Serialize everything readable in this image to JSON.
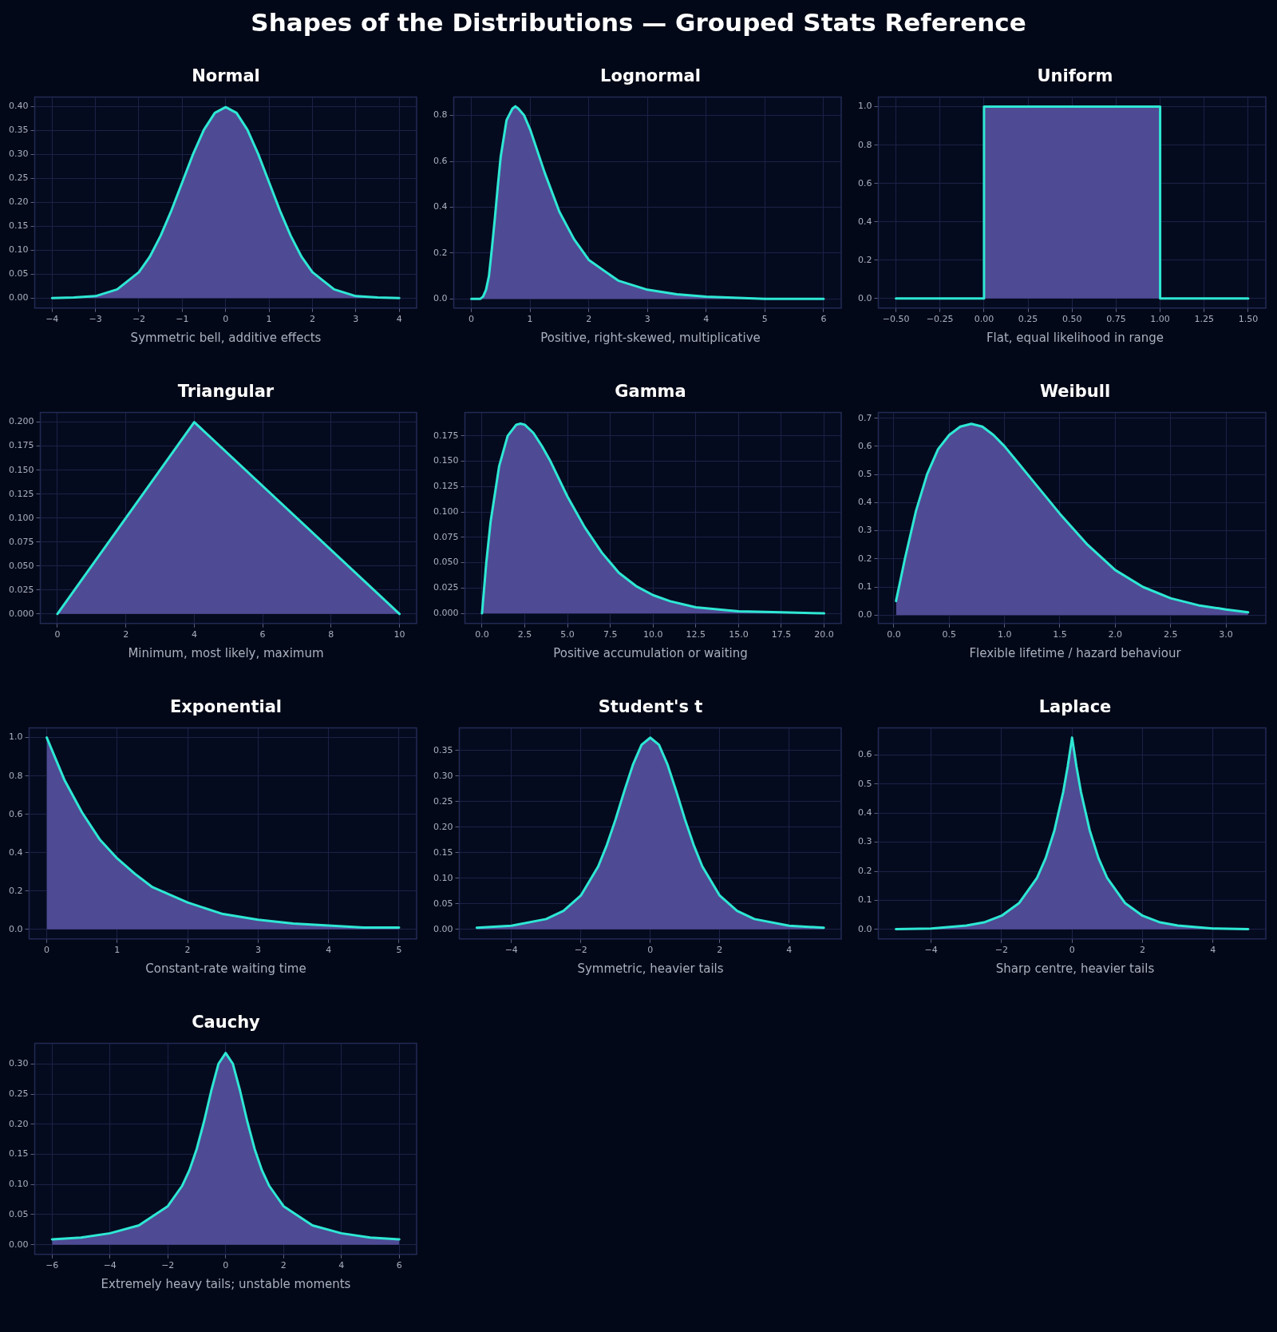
{
  "chart_data": [
    {
      "type": "other",
      "title": "Shapes of the Distributions — Grouped Stats Reference"
    },
    {
      "type": "area",
      "title": "Normal",
      "annotations": [
        "Symmetric bell, additive effects"
      ],
      "grid": true,
      "legend": false,
      "marker": "none",
      "xlim": [
        -4.4,
        4.4
      ],
      "xticks": [
        {
          "value": -4,
          "label": "−4"
        },
        {
          "value": -3,
          "label": "−3"
        },
        {
          "value": -2,
          "label": "−2"
        },
        {
          "value": -1,
          "label": "−1"
        },
        0,
        1,
        2,
        3,
        4
      ],
      "ylim": [
        -0.021,
        0.42
      ],
      "yticks": [
        {
          "value": 0,
          "label": "0.00"
        },
        {
          "value": 0.05,
          "label": "0.05"
        },
        {
          "value": 0.1,
          "label": "0.10"
        },
        {
          "value": 0.15,
          "label": "0.15"
        },
        {
          "value": 0.2,
          "label": "0.20"
        },
        {
          "value": 0.25,
          "label": "0.25"
        },
        {
          "value": 0.3,
          "label": "0.30"
        },
        {
          "value": 0.35,
          "label": "0.35"
        },
        {
          "value": 0.4,
          "label": "0.40"
        }
      ],
      "x": [
        -4,
        -3.5,
        -3,
        -2.5,
        -2,
        -1.75,
        -1.5,
        -1.25,
        -1,
        -0.75,
        -0.5,
        -0.25,
        0,
        0.25,
        0.5,
        0.75,
        1,
        1.25,
        1.5,
        1.75,
        2,
        2.5,
        3,
        3.5,
        4
      ],
      "series": [
        {
          "type": "area",
          "color": "#4f4a94",
          "values": [
            0.0,
            0.001,
            0.004,
            0.018,
            0.054,
            0.086,
            0.13,
            0.183,
            0.242,
            0.301,
            0.352,
            0.387,
            0.399,
            0.387,
            0.352,
            0.301,
            0.242,
            0.183,
            0.13,
            0.086,
            0.054,
            0.018,
            0.004,
            0.001,
            0.0
          ]
        }
      ]
    },
    {
      "type": "area",
      "title": "Lognormal",
      "annotations": [
        "Positive, right-skewed, multiplicative"
      ],
      "grid": true,
      "legend": false,
      "marker": "none",
      "xlim": [
        -0.3,
        6.3
      ],
      "xticks": [
        0,
        1,
        2,
        3,
        4,
        5,
        6
      ],
      "ylim": [
        -0.04,
        0.88
      ],
      "yticks": [
        {
          "value": 0,
          "label": "0.0"
        },
        {
          "value": 0.2,
          "label": "0.2"
        },
        {
          "value": 0.4,
          "label": "0.4"
        },
        {
          "value": 0.6,
          "label": "0.6"
        },
        {
          "value": 0.8,
          "label": "0.8"
        }
      ],
      "x": [
        0,
        0.15,
        0.2,
        0.25,
        0.3,
        0.35,
        0.4,
        0.45,
        0.5,
        0.6,
        0.7,
        0.75,
        0.8,
        0.9,
        1,
        1.25,
        1.5,
        1.75,
        2,
        2.5,
        3,
        3.5,
        4,
        5,
        6
      ],
      "series": [
        {
          "type": "area",
          "color": "#4f4a94",
          "values": [
            0,
            0,
            0.01,
            0.04,
            0.1,
            0.22,
            0.35,
            0.49,
            0.62,
            0.78,
            0.83,
            0.84,
            0.83,
            0.8,
            0.74,
            0.55,
            0.38,
            0.26,
            0.17,
            0.08,
            0.04,
            0.02,
            0.01,
            0,
            0
          ]
        }
      ]
    },
    {
      "type": "step",
      "title": "Uniform",
      "annotations": [
        "Flat, equal likelihood in range"
      ],
      "grid": true,
      "legend": false,
      "marker": "none",
      "xlim": [
        -0.6,
        1.6
      ],
      "xticks": [
        {
          "value": -0.5,
          "label": "−0.50"
        },
        {
          "value": -0.25,
          "label": "−0.25"
        },
        {
          "value": 0,
          "label": "0.00"
        },
        {
          "value": 0.25,
          "label": "0.25"
        },
        {
          "value": 0.5,
          "label": "0.50"
        },
        {
          "value": 0.75,
          "label": "0.75"
        },
        {
          "value": 1,
          "label": "1.00"
        },
        {
          "value": 1.25,
          "label": "1.25"
        },
        {
          "value": 1.5,
          "label": "1.50"
        }
      ],
      "ylim": [
        -0.05,
        1.05
      ],
      "yticks": [
        {
          "value": 0,
          "label": "0.0"
        },
        {
          "value": 0.2,
          "label": "0.2"
        },
        {
          "value": 0.4,
          "label": "0.4"
        },
        {
          "value": 0.6,
          "label": "0.6"
        },
        {
          "value": 0.8,
          "label": "0.8"
        },
        {
          "value": 1,
          "label": "1.0"
        }
      ],
      "x": [
        -0.5,
        0,
        1,
        1.5
      ],
      "series": [
        {
          "type": "area",
          "color": "#4f4a94",
          "values": [
            0,
            1,
            0,
            0
          ]
        }
      ]
    },
    {
      "type": "area",
      "title": "Triangular",
      "annotations": [
        "Minimum, most likely, maximum"
      ],
      "grid": true,
      "legend": false,
      "marker": "none",
      "xlim": [
        -0.5,
        10.5
      ],
      "xticks": [
        0,
        2,
        4,
        6,
        8,
        10
      ],
      "ylim": [
        -0.01,
        0.21
      ],
      "yticks": [
        {
          "value": 0,
          "label": "0.000"
        },
        {
          "value": 0.025,
          "label": "0.025"
        },
        {
          "value": 0.05,
          "label": "0.050"
        },
        {
          "value": 0.075,
          "label": "0.075"
        },
        {
          "value": 0.1,
          "label": "0.100"
        },
        {
          "value": 0.125,
          "label": "0.125"
        },
        {
          "value": 0.15,
          "label": "0.150"
        },
        {
          "value": 0.175,
          "label": "0.175"
        },
        {
          "value": 0.2,
          "label": "0.200"
        }
      ],
      "x": [
        0,
        4,
        10
      ],
      "series": [
        {
          "type": "area",
          "color": "#4f4a94",
          "values": [
            0,
            0.2,
            0
          ]
        }
      ]
    },
    {
      "type": "area",
      "title": "Gamma",
      "annotations": [
        "Positive accumulation or waiting"
      ],
      "grid": true,
      "legend": false,
      "marker": "none",
      "xlim": [
        -1,
        21
      ],
      "xticks": [
        {
          "value": 0,
          "label": "0.0"
        },
        {
          "value": 2.5,
          "label": "2.5"
        },
        {
          "value": 5,
          "label": "5.0"
        },
        {
          "value": 7.5,
          "label": "7.5"
        },
        {
          "value": 10,
          "label": "10.0"
        },
        {
          "value": 12.5,
          "label": "12.5"
        },
        {
          "value": 15,
          "label": "15.0"
        },
        {
          "value": 17.5,
          "label": "17.5"
        },
        {
          "value": 20,
          "label": "20.0"
        }
      ],
      "ylim": [
        -0.01,
        0.198
      ],
      "yticks": [
        {
          "value": 0,
          "label": "0.000"
        },
        {
          "value": 0.025,
          "label": "0.025"
        },
        {
          "value": 0.05,
          "label": "0.050"
        },
        {
          "value": 0.075,
          "label": "0.075"
        },
        {
          "value": 0.1,
          "label": "0.100"
        },
        {
          "value": 0.125,
          "label": "0.125"
        },
        {
          "value": 0.15,
          "label": "0.150"
        },
        {
          "value": 0.175,
          "label": "0.175"
        }
      ],
      "x": [
        0,
        0.25,
        0.5,
        1,
        1.5,
        2,
        2.25,
        2.5,
        3,
        3.5,
        4,
        5,
        6,
        7,
        8,
        9,
        10,
        11,
        12.5,
        15,
        17.5,
        20
      ],
      "series": [
        {
          "type": "area",
          "color": "#4f4a94",
          "values": [
            0,
            0.05,
            0.09,
            0.145,
            0.175,
            0.186,
            0.187,
            0.186,
            0.178,
            0.165,
            0.15,
            0.115,
            0.085,
            0.06,
            0.04,
            0.027,
            0.018,
            0.012,
            0.006,
            0.002,
            0.001,
            0
          ]
        }
      ]
    },
    {
      "type": "area",
      "title": "Weibull",
      "annotations": [
        "Flexible lifetime / hazard behaviour"
      ],
      "grid": true,
      "legend": false,
      "marker": "none",
      "xlim": [
        -0.14,
        3.36
      ],
      "xticks": [
        {
          "value": 0,
          "label": "0.0"
        },
        {
          "value": 0.5,
          "label": "0.5"
        },
        {
          "value": 1,
          "label": "1.0"
        },
        {
          "value": 1.5,
          "label": "1.5"
        },
        {
          "value": 2,
          "label": "2.0"
        },
        {
          "value": 2.5,
          "label": "2.5"
        },
        {
          "value": 3,
          "label": "3.0"
        }
      ],
      "ylim": [
        -0.03,
        0.72
      ],
      "yticks": [
        {
          "value": 0,
          "label": "0.0"
        },
        {
          "value": 0.1,
          "label": "0.1"
        },
        {
          "value": 0.2,
          "label": "0.2"
        },
        {
          "value": 0.3,
          "label": "0.3"
        },
        {
          "value": 0.4,
          "label": "0.4"
        },
        {
          "value": 0.5,
          "label": "0.5"
        },
        {
          "value": 0.6,
          "label": "0.6"
        },
        {
          "value": 0.7,
          "label": "0.7"
        }
      ],
      "x": [
        0.02,
        0.1,
        0.2,
        0.3,
        0.4,
        0.5,
        0.6,
        0.7,
        0.8,
        0.9,
        1,
        1.25,
        1.5,
        1.75,
        2,
        2.25,
        2.5,
        2.75,
        3,
        3.2
      ],
      "series": [
        {
          "type": "area",
          "color": "#4f4a94",
          "values": [
            0.05,
            0.2,
            0.37,
            0.5,
            0.59,
            0.64,
            0.67,
            0.68,
            0.67,
            0.64,
            0.6,
            0.48,
            0.36,
            0.25,
            0.16,
            0.1,
            0.06,
            0.035,
            0.02,
            0.01
          ]
        }
      ]
    },
    {
      "type": "area",
      "title": "Exponential",
      "annotations": [
        "Constant-rate waiting time"
      ],
      "grid": true,
      "legend": false,
      "marker": "none",
      "xlim": [
        -0.25,
        5.25
      ],
      "xticks": [
        0,
        1,
        2,
        3,
        4,
        5
      ],
      "ylim": [
        -0.05,
        1.05
      ],
      "yticks": [
        {
          "value": 0,
          "label": "0.0"
        },
        {
          "value": 0.2,
          "label": "0.2"
        },
        {
          "value": 0.4,
          "label": "0.4"
        },
        {
          "value": 0.6,
          "label": "0.6"
        },
        {
          "value": 0.8,
          "label": "0.8"
        },
        {
          "value": 1,
          "label": "1.0"
        }
      ],
      "x": [
        0,
        0.25,
        0.5,
        0.75,
        1,
        1.25,
        1.5,
        2,
        2.5,
        3,
        3.5,
        4,
        4.5,
        5
      ],
      "series": [
        {
          "type": "area",
          "color": "#4f4a94",
          "values": [
            1,
            0.78,
            0.61,
            0.47,
            0.37,
            0.29,
            0.22,
            0.14,
            0.08,
            0.05,
            0.03,
            0.02,
            0.01,
            0.01
          ]
        }
      ]
    },
    {
      "type": "area",
      "title": "Student's t",
      "annotations": [
        "Symmetric, heavier tails"
      ],
      "grid": true,
      "legend": false,
      "marker": "none",
      "xlim": [
        -5.5,
        5.5
      ],
      "xticks": [
        {
          "value": -4,
          "label": "−4"
        },
        {
          "value": -2,
          "label": "−2"
        },
        0,
        2,
        4
      ],
      "ylim": [
        -0.019,
        0.394
      ],
      "yticks": [
        {
          "value": 0,
          "label": "0.00"
        },
        {
          "value": 0.05,
          "label": "0.05"
        },
        {
          "value": 0.1,
          "label": "0.10"
        },
        {
          "value": 0.15,
          "label": "0.15"
        },
        {
          "value": 0.2,
          "label": "0.20"
        },
        {
          "value": 0.25,
          "label": "0.25"
        },
        {
          "value": 0.3,
          "label": "0.30"
        },
        {
          "value": 0.35,
          "label": "0.35"
        }
      ],
      "x": [
        -5,
        -4,
        -3,
        -2.5,
        -2,
        -1.5,
        -1.25,
        -1,
        -0.75,
        -0.5,
        -0.25,
        0,
        0.25,
        0.5,
        0.75,
        1,
        1.25,
        1.5,
        2,
        2.5,
        3,
        4,
        5
      ],
      "series": [
        {
          "type": "area",
          "color": "#4f4a94",
          "values": [
            0.003,
            0.007,
            0.02,
            0.036,
            0.066,
            0.123,
            0.165,
            0.215,
            0.27,
            0.322,
            0.361,
            0.375,
            0.361,
            0.322,
            0.27,
            0.215,
            0.165,
            0.123,
            0.066,
            0.036,
            0.02,
            0.007,
            0.003
          ]
        }
      ]
    },
    {
      "type": "area",
      "title": "Laplace",
      "annotations": [
        "Sharp centre, heavier tails"
      ],
      "grid": true,
      "legend": false,
      "marker": "none",
      "xlim": [
        -5.5,
        5.5
      ],
      "xticks": [
        {
          "value": -4,
          "label": "−4"
        },
        {
          "value": -2,
          "label": "−2"
        },
        0,
        2,
        4
      ],
      "ylim": [
        -0.033,
        0.693
      ],
      "yticks": [
        {
          "value": 0,
          "label": "0.0"
        },
        {
          "value": 0.1,
          "label": "0.1"
        },
        {
          "value": 0.2,
          "label": "0.2"
        },
        {
          "value": 0.3,
          "label": "0.3"
        },
        {
          "value": 0.4,
          "label": "0.4"
        },
        {
          "value": 0.5,
          "label": "0.5"
        },
        {
          "value": 0.6,
          "label": "0.6"
        }
      ],
      "x": [
        -5,
        -4,
        -3,
        -2.5,
        -2,
        -1.5,
        -1,
        -0.75,
        -0.5,
        -0.25,
        -0.125,
        0,
        0.125,
        0.25,
        0.5,
        0.75,
        1,
        1.5,
        2,
        2.5,
        3,
        4,
        5
      ],
      "series": [
        {
          "type": "area",
          "color": "#4f4a94",
          "values": [
            0.001,
            0.003,
            0.013,
            0.024,
            0.047,
            0.091,
            0.176,
            0.245,
            0.341,
            0.474,
            0.56,
            0.66,
            0.56,
            0.474,
            0.341,
            0.245,
            0.176,
            0.091,
            0.047,
            0.024,
            0.013,
            0.003,
            0.001
          ]
        }
      ]
    },
    {
      "type": "area",
      "title": "Cauchy",
      "annotations": [
        "Extremely heavy tails; unstable moments"
      ],
      "grid": true,
      "legend": false,
      "marker": "none",
      "xlim": [
        -6.6,
        6.6
      ],
      "xticks": [
        {
          "value": -6,
          "label": "−6"
        },
        {
          "value": -4,
          "label": "−4"
        },
        {
          "value": -2,
          "label": "−2"
        },
        0,
        2,
        4,
        6
      ],
      "ylim": [
        -0.016,
        0.334
      ],
      "yticks": [
        {
          "value": 0,
          "label": "0.00"
        },
        {
          "value": 0.05,
          "label": "0.05"
        },
        {
          "value": 0.1,
          "label": "0.10"
        },
        {
          "value": 0.15,
          "label": "0.15"
        },
        {
          "value": 0.2,
          "label": "0.20"
        },
        {
          "value": 0.25,
          "label": "0.25"
        },
        {
          "value": 0.3,
          "label": "0.30"
        }
      ],
      "x": [
        -6,
        -5,
        -4,
        -3,
        -2,
        -1.5,
        -1.25,
        -1,
        -0.75,
        -0.5,
        -0.25,
        0,
        0.25,
        0.5,
        0.75,
        1,
        1.25,
        1.5,
        2,
        3,
        4,
        5,
        6
      ],
      "series": [
        {
          "type": "area",
          "color": "#4f4a94",
          "values": [
            0.009,
            0.012,
            0.019,
            0.032,
            0.064,
            0.098,
            0.124,
            0.159,
            0.204,
            0.255,
            0.3,
            0.318,
            0.3,
            0.255,
            0.204,
            0.159,
            0.124,
            0.098,
            0.064,
            0.032,
            0.019,
            0.012,
            0.009
          ]
        }
      ]
    }
  ]
}
